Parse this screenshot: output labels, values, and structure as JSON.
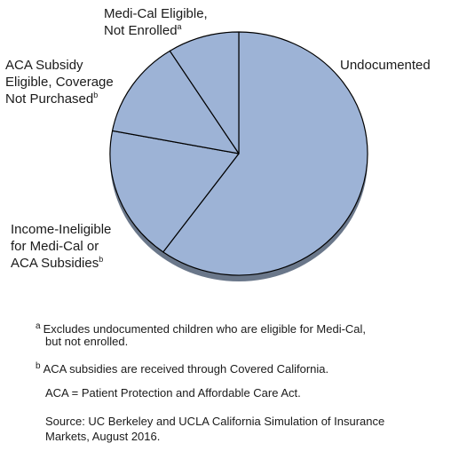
{
  "chart_data": {
    "type": "pie",
    "title": "",
    "labels": [
      "Undocumented",
      "Income-Ineligible for Medi-Cal or ACA Subsidies",
      "ACA Subsidy Eligible, Coverage Not Purchased",
      "Medi-Cal Eligible, Not Enrolled"
    ],
    "values": [
      60,
      18,
      13,
      9
    ],
    "color": "#9db3d6",
    "edge_color": "#6a778a",
    "outline_color": "#000000"
  },
  "labels": {
    "undocumented": "Undocumented",
    "income_ineligible": [
      "Income-Ineligible",
      "for Medi-Cal or",
      "ACA Subsidies"
    ],
    "income_ineligible_note": "b",
    "aca_subsidy": [
      "ACA Subsidy",
      "Eligible, Coverage",
      "Not Purchased"
    ],
    "aca_subsidy_note": "b",
    "medical_eligible": [
      "Medi-Cal Eligible,",
      "Not Enrolled"
    ],
    "medical_eligible_note": "a"
  },
  "footnotes": {
    "a_mark": "a",
    "a_line1": "Excludes undocumented children who are eligible for Medi-Cal,",
    "a_line2": "but not enrolled.",
    "b_mark": "b",
    "b_line1": "ACA subsidies are received through Covered California.",
    "aca_def": "ACA = Patient Protection and Affordable Care Act.",
    "source_line1": "Source: UC Berkeley and UCLA California Simulation of Insurance",
    "source_line2": "Markets, August 2016."
  }
}
